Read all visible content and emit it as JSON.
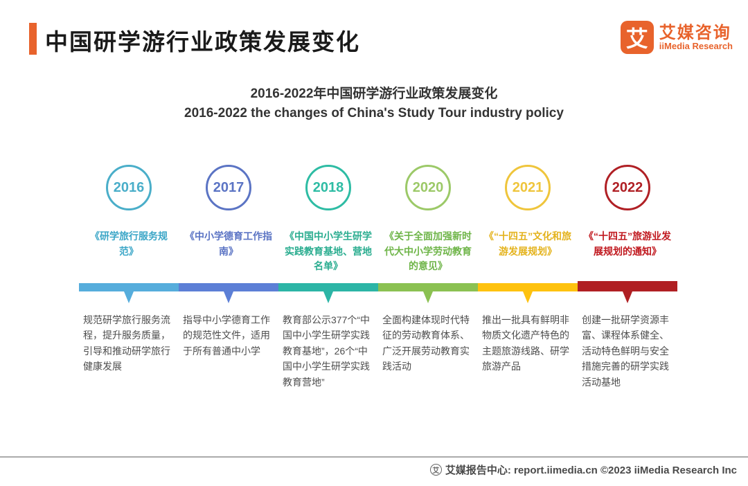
{
  "header": {
    "title": "中国研学游行业政策发展变化",
    "accent_color": "#E8632C",
    "logo": {
      "icon_char": "艾",
      "name_cn": "艾媒咨询",
      "name_en": "iiMedia Research",
      "brand_color": "#E8632C"
    }
  },
  "chart_title": {
    "cn": "2016-2022年中国研学游行业政策发展变化",
    "en": "2016-2022 the changes of China's Study Tour industry policy"
  },
  "chart_data": {
    "type": "table",
    "title": "2016-2022年中国研学游行业政策发展变化",
    "subtitle": "2016-2022 the changes of China's Study Tour industry policy",
    "categories": [
      "2016",
      "2017",
      "2018",
      "2020",
      "2021",
      "2022"
    ],
    "series": [
      {
        "name": "policy",
        "values": [
          "《研学旅行服务规范》",
          "《中小学德育工作指南》",
          "《中国中小学生研学实践教育基地、营地名单》",
          "《关于全面加强新时代大中小学劳动教育的意见》",
          "《“十四五”文化和旅游发展规划》",
          "《“十四五”旅游业发展规划的通知》"
        ]
      },
      {
        "name": "description",
        "values": [
          "规范研学旅行服务流程，提升服务质量，引导和推动研学旅行健康发展",
          "指导中小学德育工作的规范性文件，适用于所有普通中小学",
          "教育部公示377个“中国中小学生研学实践教育基地”，26个“中国中小学生研学实践教育营地”",
          "全面构建体现时代特征的劳动教育体系、广泛开展劳动教育实践活动",
          "推出一批具有鲜明非物质文化遗产特色的主题旅游线路、研学旅游产品",
          "创建一批研学资源丰富、课程体系健全、活动特色鲜明与安全措施完善的研学实践活动基地"
        ]
      }
    ]
  },
  "timeline": {
    "items": [
      {
        "year": "2016",
        "circle_color": "#4AAEC9",
        "bar_color": "#56ADDC",
        "title_color": "#3BA6C7",
        "policy": "《研学旅行服务规范》",
        "description": "规范研学旅行服务流程，提升服务质量，引导和推动研学旅行健康发展"
      },
      {
        "year": "2017",
        "circle_color": "#5B74C4",
        "bar_color": "#5C7FD6",
        "title_color": "#5B74C4",
        "policy": "《中小学德育工作指南》",
        "description": "指导中小学德育工作的规范性文件，适用于所有普通中小学"
      },
      {
        "year": "2018",
        "circle_color": "#2EBCA4",
        "bar_color": "#2CB5A6",
        "title_color": "#2BAD90",
        "policy": "《中国中小学生研学实践教育基地、营地名单》",
        "description": "教育部公示377个“中国中小学生研学实践教育基地”，26个“中国中小学生研学实践教育营地”"
      },
      {
        "year": "2020",
        "circle_color": "#9CC968",
        "bar_color": "#8BC152",
        "title_color": "#6FB549",
        "policy": "《关于全面加强新时代大中小学劳动教育的意见》",
        "description": "全面构建体现时代特征的劳动教育体系、广泛开展劳动教育实践活动"
      },
      {
        "year": "2021",
        "circle_color": "#EFC53C",
        "bar_color": "#FEC20F",
        "title_color": "#E4B31D",
        "policy": "《“十四五”文化和旅游发展规划》",
        "description": "推出一批具有鲜明非物质文化遗产特色的主题旅游线路、研学旅游产品"
      },
      {
        "year": "2022",
        "circle_color": "#B02025",
        "bar_color": "#B01F23",
        "title_color": "#C0181E",
        "policy": "《“十四五”旅游业发展规划的通知》",
        "description": "创建一批研学资源丰富、课程体系健全、活动特色鲜明与安全措施完善的研学实践活动基地"
      }
    ]
  },
  "footer": {
    "icon_char": "艾",
    "text": "艾媒报告中心: report.iimedia.cn  ©2023  iiMedia Research Inc"
  }
}
